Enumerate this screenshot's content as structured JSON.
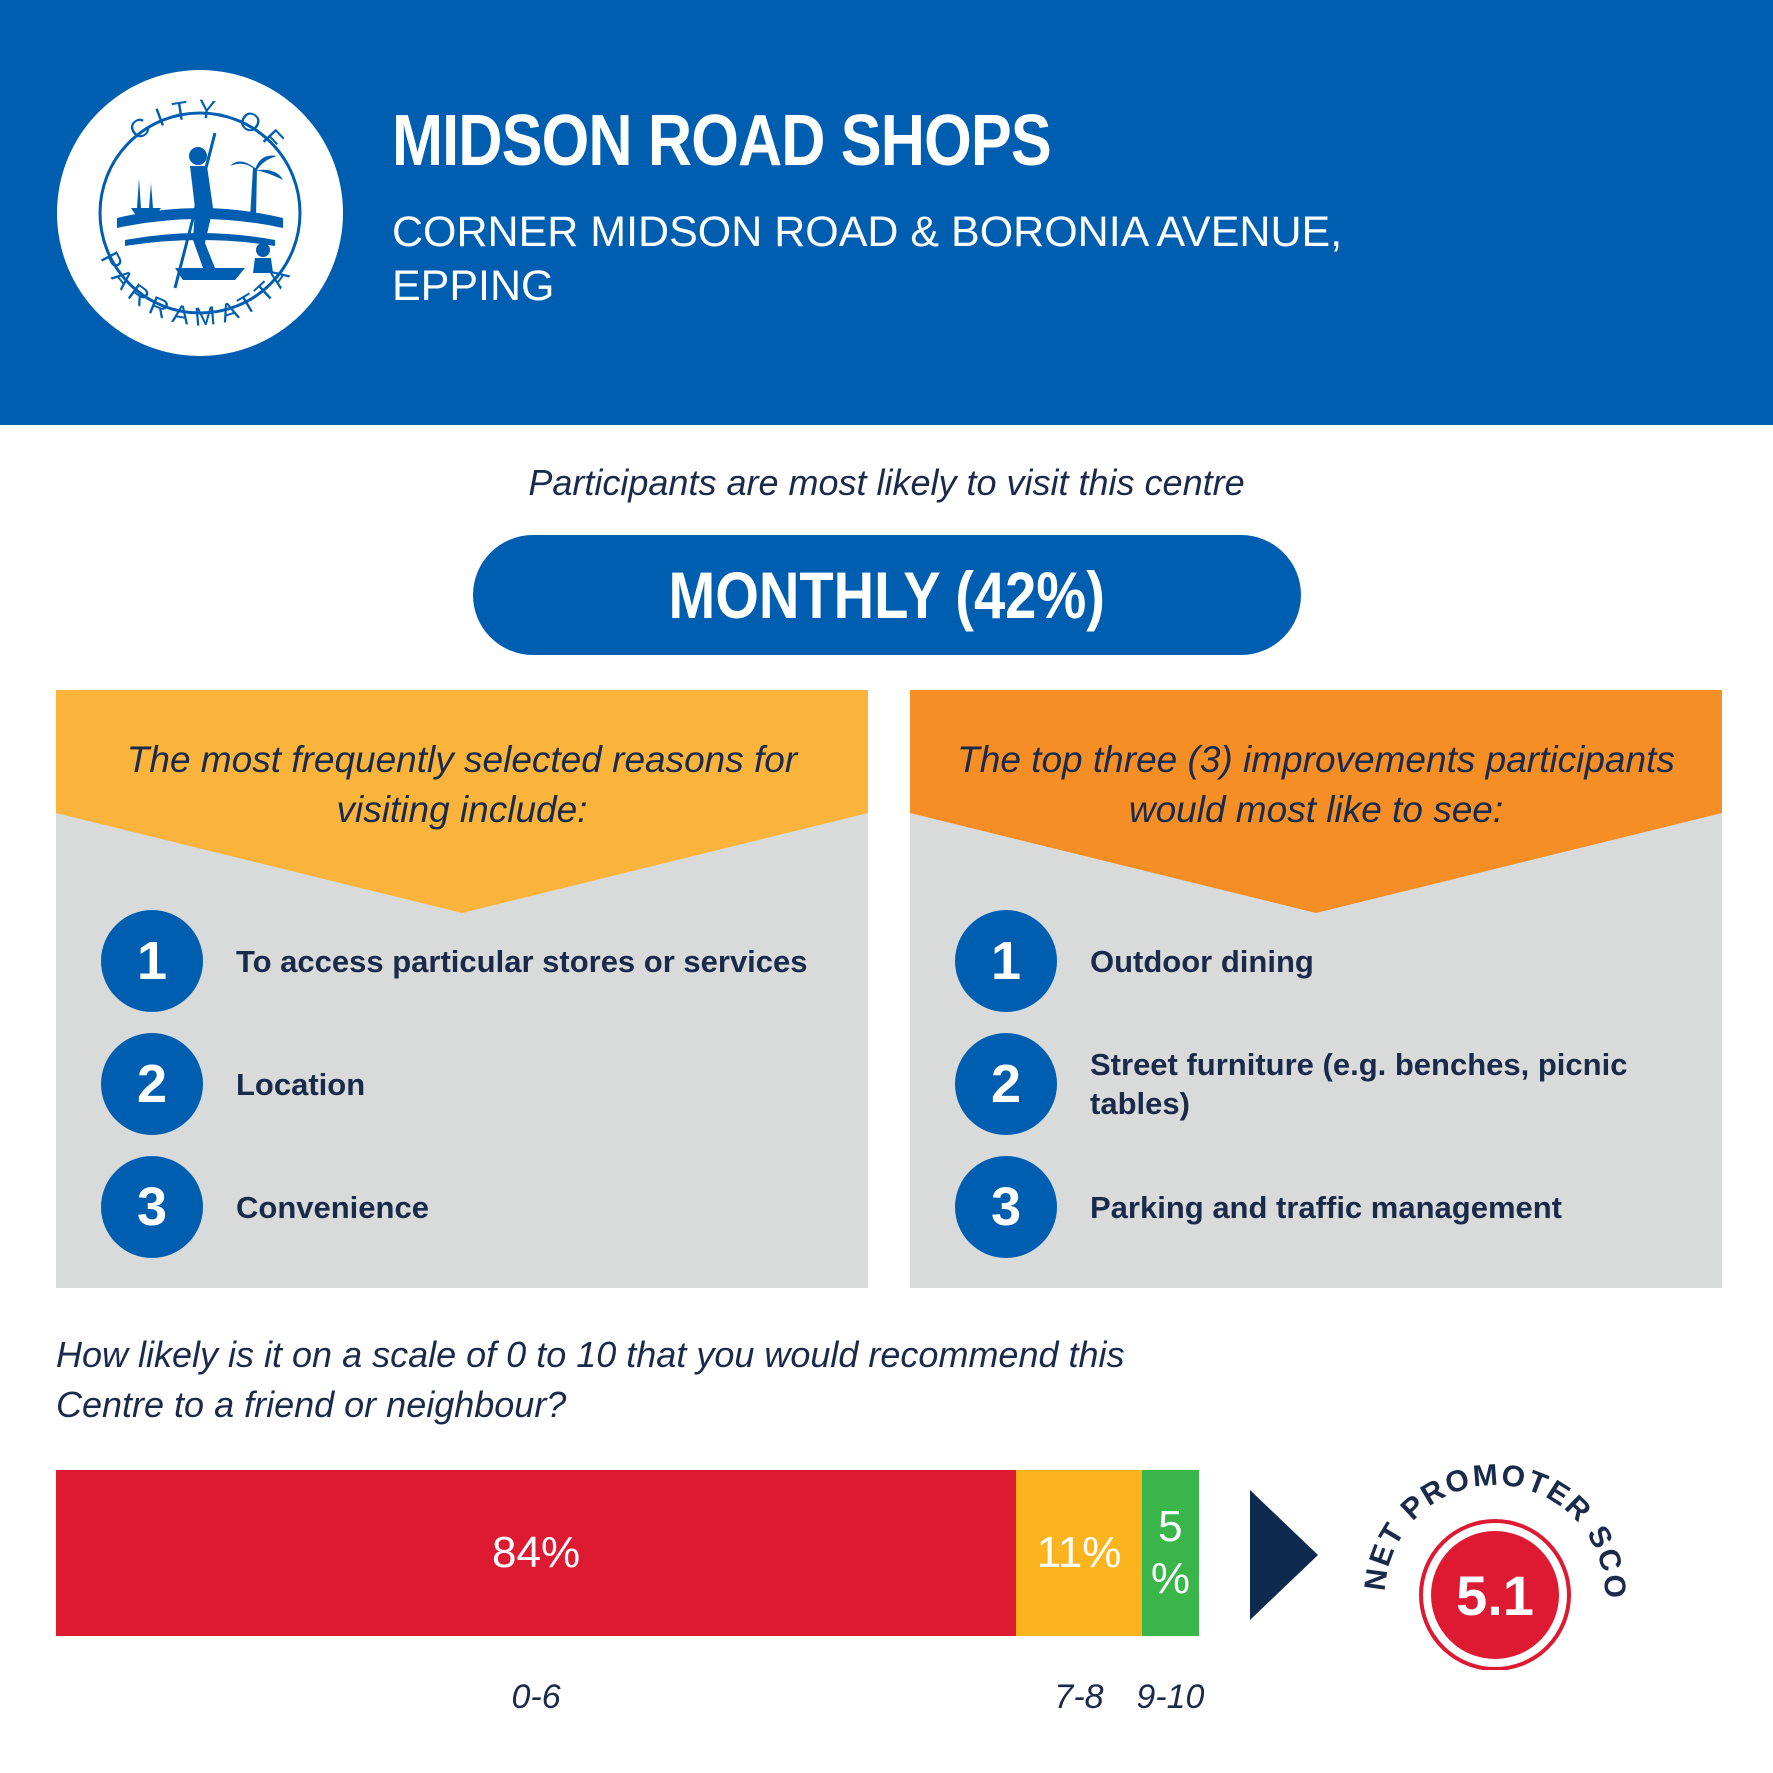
{
  "header": {
    "logo_text_top": "CITY OF",
    "logo_text_bottom": "PARRAMATTA",
    "title": "MIDSON ROAD SHOPS",
    "subtitle": "CORNER MIDSON ROAD & BORONIA AVENUE, EPPING"
  },
  "visit": {
    "intro": "Participants are most likely to visit this centre",
    "frequency": "MONTHLY (42%)"
  },
  "reasons": {
    "heading": "The most frequently selected reasons for visiting include:",
    "items": [
      {
        "num": "1",
        "label": "To access particular stores or services"
      },
      {
        "num": "2",
        "label": "Location"
      },
      {
        "num": "3",
        "label": "Convenience"
      }
    ]
  },
  "improvements": {
    "heading": "The top three (3) improvements participants would most like to see:",
    "items": [
      {
        "num": "1",
        "label": "Outdoor dining"
      },
      {
        "num": "2",
        "label": "Street furniture (e.g. benches, picnic tables)"
      },
      {
        "num": "3",
        "label": "Parking and traffic management"
      }
    ]
  },
  "recommend": {
    "question": "How likely is it on a scale of 0 to 10 that you would recommend this Centre to a friend or neighbour?",
    "nps_label": "NET PROMOTER SCORE",
    "nps_value": "5.1"
  },
  "chart_data": {
    "type": "bar",
    "categories": [
      "0-6",
      "7-8",
      "9-10"
    ],
    "values": [
      84,
      11,
      5
    ],
    "value_labels": [
      "84%",
      "11%",
      "5 %"
    ],
    "unit": "%",
    "colors": [
      "#DE1A32",
      "#FBB41D",
      "#39B54A"
    ]
  },
  "colors": {
    "brand_blue": "#005EB0",
    "yellow_header": "#FAB43C",
    "orange_header": "#F58E25",
    "panel_grey": "#D9DADA",
    "navy": "#1A2A4A",
    "nps_red": "#DE1A32"
  }
}
